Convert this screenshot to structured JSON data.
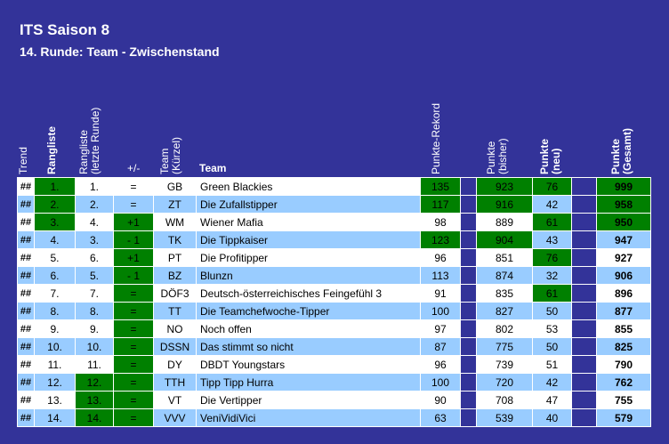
{
  "title": "ITS Saison 8",
  "subtitle": "14. Runde: Team - Zwischenstand",
  "headers": {
    "trend": "Trend",
    "rang": "Rangliste",
    "prev1": "Rangliste",
    "prev2": "(letzte Runde)",
    "diff": "+/-",
    "code1": "Team",
    "code2": "(Kürzel)",
    "team": "Team",
    "rekord": "Punkte-Rekord",
    "bish1": "Punkte",
    "bish2": "(bisher)",
    "neu1": "Punkte",
    "neu2": "(neu)",
    "ges1": "Punkte",
    "ges2": "(Gesamt)"
  },
  "colors": {
    "background": "#333399",
    "highlight": "#008000",
    "row_alt": "#99ccff"
  },
  "rows": [
    {
      "trend": "##",
      "rank": "1.",
      "prev": "1.",
      "diff": "=",
      "code": "GB",
      "team": "Green Blackies",
      "rekord": "135",
      "bisher": "923",
      "neu": "76",
      "gesamt": "999"
    },
    {
      "trend": "##",
      "rank": "2.",
      "prev": "2.",
      "diff": "=",
      "code": "ZT",
      "team": "Die Zufallstipper",
      "rekord": "117",
      "bisher": "916",
      "neu": "42",
      "gesamt": "958"
    },
    {
      "trend": "##",
      "rank": "3.",
      "prev": "4.",
      "diff": "+1",
      "code": "WM",
      "team": "Wiener Mafia",
      "rekord": "98",
      "bisher": "889",
      "neu": "61",
      "gesamt": "950"
    },
    {
      "trend": "##",
      "rank": "4.",
      "prev": "3.",
      "diff": "- 1",
      "code": "TK",
      "team": "Die Tippkaiser",
      "rekord": "123",
      "bisher": "904",
      "neu": "43",
      "gesamt": "947"
    },
    {
      "trend": "##",
      "rank": "5.",
      "prev": "6.",
      "diff": "+1",
      "code": "PT",
      "team": "Die Profitipper",
      "rekord": "96",
      "bisher": "851",
      "neu": "76",
      "gesamt": "927"
    },
    {
      "trend": "##",
      "rank": "6.",
      "prev": "5.",
      "diff": "- 1",
      "code": "BZ",
      "team": "Blunzn",
      "rekord": "113",
      "bisher": "874",
      "neu": "32",
      "gesamt": "906"
    },
    {
      "trend": "##",
      "rank": "7.",
      "prev": "7.",
      "diff": "=",
      "code": "DÖF3",
      "team": "Deutsch-österreichisches Feingefühl 3",
      "rekord": "91",
      "bisher": "835",
      "neu": "61",
      "gesamt": "896"
    },
    {
      "trend": "##",
      "rank": "8.",
      "prev": "8.",
      "diff": "=",
      "code": "TT",
      "team": "Die Teamchefwoche-Tipper",
      "rekord": "100",
      "bisher": "827",
      "neu": "50",
      "gesamt": "877"
    },
    {
      "trend": "##",
      "rank": "9.",
      "prev": "9.",
      "diff": "=",
      "code": "NO",
      "team": "Noch offen",
      "rekord": "97",
      "bisher": "802",
      "neu": "53",
      "gesamt": "855"
    },
    {
      "trend": "##",
      "rank": "10.",
      "prev": "10.",
      "diff": "=",
      "code": "DSSN",
      "team": "Das stimmt so nicht",
      "rekord": "87",
      "bisher": "775",
      "neu": "50",
      "gesamt": "825"
    },
    {
      "trend": "##",
      "rank": "11.",
      "prev": "11.",
      "diff": "=",
      "code": "DY",
      "team": "DBDT Youngstars",
      "rekord": "96",
      "bisher": "739",
      "neu": "51",
      "gesamt": "790"
    },
    {
      "trend": "##",
      "rank": "12.",
      "prev": "12.",
      "diff": "=",
      "code": "TTH",
      "team": "Tipp Tipp Hurra",
      "rekord": "100",
      "bisher": "720",
      "neu": "42",
      "gesamt": "762"
    },
    {
      "trend": "##",
      "rank": "13.",
      "prev": "13.",
      "diff": "=",
      "code": "VT",
      "team": "Die Vertipper",
      "rekord": "90",
      "bisher": "708",
      "neu": "47",
      "gesamt": "755"
    },
    {
      "trend": "##",
      "rank": "14.",
      "prev": "14.",
      "diff": "=",
      "code": "VVV",
      "team": "VeniVidiVici",
      "rekord": "63",
      "bisher": "539",
      "neu": "40",
      "gesamt": "579"
    }
  ],
  "green_cells": [
    {
      "row": 0,
      "cols": [
        "rank",
        "rekord",
        "bisher",
        "neu",
        "gesamt"
      ]
    },
    {
      "row": 1,
      "cols": [
        "rank",
        "rekord",
        "bisher",
        "gesamt"
      ]
    },
    {
      "row": 2,
      "cols": [
        "rank",
        "diff",
        "neu",
        "gesamt"
      ]
    },
    {
      "row": 3,
      "cols": [
        "diff",
        "rekord",
        "bisher"
      ]
    },
    {
      "row": 4,
      "cols": [
        "diff",
        "neu"
      ]
    },
    {
      "row": 5,
      "cols": [
        "diff"
      ]
    },
    {
      "row": 6,
      "cols": [
        "diff",
        "neu"
      ]
    },
    {
      "row": 7,
      "cols": [
        "diff"
      ]
    },
    {
      "row": 8,
      "cols": [
        "diff"
      ]
    },
    {
      "row": 9,
      "cols": [
        "diff"
      ]
    },
    {
      "row": 10,
      "cols": [
        "diff"
      ]
    },
    {
      "row": 11,
      "cols": [
        "prev",
        "diff"
      ]
    },
    {
      "row": 12,
      "cols": [
        "prev",
        "diff"
      ]
    },
    {
      "row": 13,
      "cols": [
        "prev",
        "diff"
      ]
    }
  ]
}
